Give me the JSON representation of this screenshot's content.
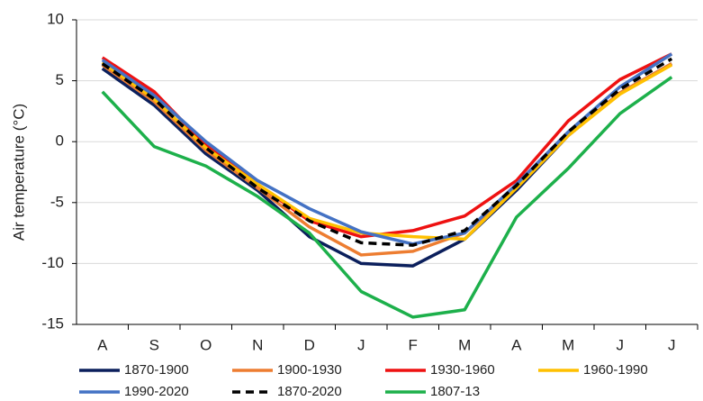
{
  "chart_data": {
    "type": "line",
    "y_label": "Air temperature (°C)",
    "categories": [
      "A",
      "S",
      "O",
      "N",
      "D",
      "J",
      "F",
      "M",
      "A",
      "M",
      "J",
      "J"
    ],
    "ylim": [
      -15,
      10
    ],
    "yticks": [
      -15,
      -10,
      -5,
      0,
      5,
      10
    ],
    "grid": true,
    "legend": "bottom",
    "series": [
      {
        "name": "1870-1900",
        "color": "#0b1f5c",
        "values": [
          6.0,
          3.0,
          -1.0,
          -4.0,
          -7.8,
          -10.0,
          -10.2,
          -8.0,
          -4.0,
          0.5,
          4.0,
          6.4
        ]
      },
      {
        "name": "1900-1930",
        "color": "#ed7d31",
        "values": [
          6.3,
          3.3,
          -0.7,
          -3.8,
          -7.0,
          -9.3,
          -9.0,
          -7.5,
          -3.8,
          0.5,
          4.0,
          6.4
        ]
      },
      {
        "name": "1930-1960",
        "color": "#ee1111",
        "values": [
          6.9,
          4.1,
          -0.3,
          -3.5,
          -6.5,
          -7.8,
          -7.3,
          -6.1,
          -3.2,
          1.7,
          5.1,
          7.2
        ]
      },
      {
        "name": "1960-1990",
        "color": "#ffc000",
        "values": [
          6.5,
          3.5,
          -0.5,
          -3.5,
          -6.3,
          -7.5,
          -7.8,
          -8.0,
          -3.8,
          0.5,
          3.9,
          6.3
        ]
      },
      {
        "name": "1990-2020",
        "color": "#4472c4",
        "values": [
          6.7,
          3.8,
          0.0,
          -3.2,
          -5.5,
          -7.4,
          -8.4,
          -7.5,
          -3.5,
          0.8,
          4.5,
          7.2
        ]
      },
      {
        "name": "1870-2020",
        "color": "#000000",
        "dash": true,
        "values": [
          6.4,
          3.5,
          -0.5,
          -3.8,
          -6.5,
          -8.3,
          -8.5,
          -7.3,
          -3.6,
          0.8,
          4.3,
          6.8
        ]
      },
      {
        "name": "1807-13",
        "color": "#1db04b",
        "values": [
          4.1,
          -0.4,
          -2.0,
          -4.5,
          -7.5,
          -12.3,
          -14.4,
          -13.8,
          -6.2,
          -2.2,
          2.3,
          5.3
        ]
      }
    ]
  }
}
